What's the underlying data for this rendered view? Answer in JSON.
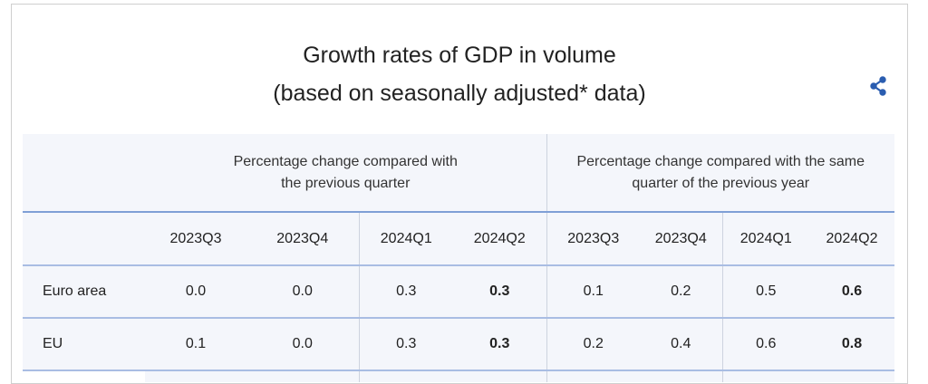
{
  "title": {
    "line1": "Growth rates of GDP in volume",
    "line2": "(based on seasonally adjusted* data)"
  },
  "share_icon": "share-icon",
  "accent_color": "#2a5db0",
  "table": {
    "groups": [
      "Percentage change compared with the previous quarter",
      "Percentage change compared with the same quarter of the previous year"
    ],
    "quarters": [
      "2023Q3",
      "2023Q4",
      "2024Q1",
      "2024Q2",
      "2023Q3",
      "2023Q4",
      "2024Q1",
      "2024Q2"
    ],
    "rows": [
      {
        "label": "Euro area",
        "values": [
          "0.0",
          "0.0",
          "0.3",
          "0.3",
          "0.1",
          "0.2",
          "0.5",
          "0.6"
        ]
      },
      {
        "label": "EU",
        "values": [
          "0.1",
          "0.0",
          "0.3",
          "0.3",
          "0.2",
          "0.4",
          "0.6",
          "0.8"
        ]
      }
    ]
  }
}
